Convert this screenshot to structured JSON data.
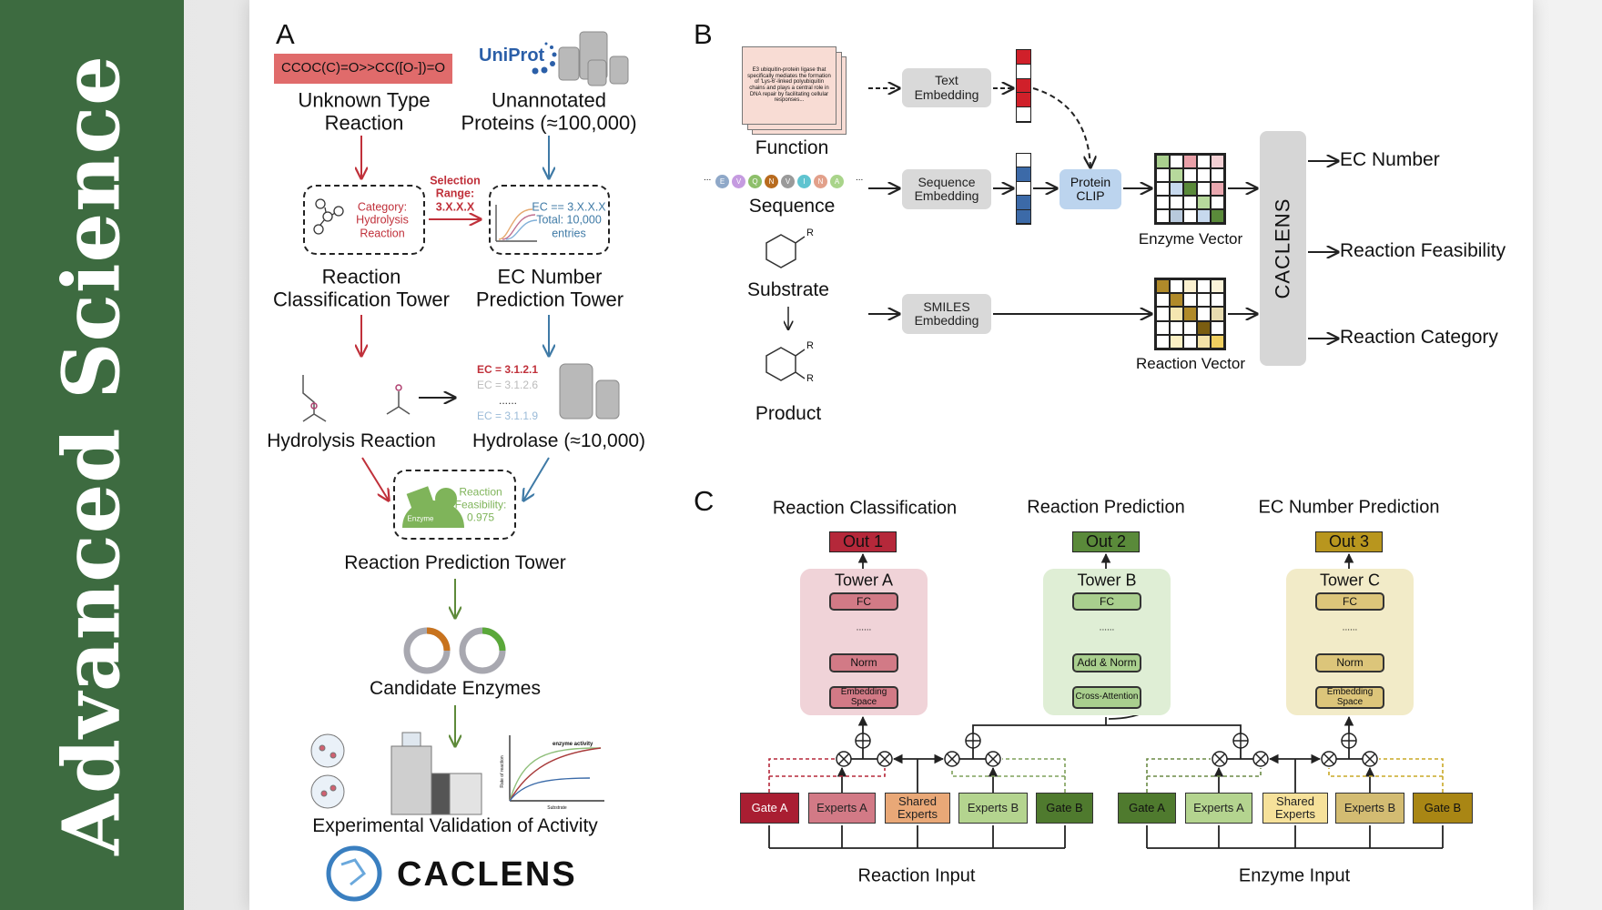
{
  "sidebar": {
    "title": "Advanced Science",
    "color": "#3d6b40"
  },
  "panel_a": {
    "label": "A",
    "smiles": "CCOC(C)=O>>CC([O-])=O",
    "uniprot_logo": "UniProt",
    "unknown_reaction": {
      "line1": "Unknown Type",
      "line2": "Reaction"
    },
    "unannotated": {
      "line1": "Unannotated",
      "line2": "Proteins (≈100,000)"
    },
    "category_box": {
      "line1": "Category:",
      "line2": "Hydrolysis",
      "line3": "Reaction"
    },
    "selection": {
      "line1": "Selection",
      "line2": "Range:",
      "line3": "3.X.X.X"
    },
    "ec_box": {
      "line1": "EC == 3.X.X.X",
      "line2": "Total: 10,000",
      "line3": "entries"
    },
    "reaction_tower": {
      "line1": "Reaction",
      "line2": "Classification Tower"
    },
    "ec_tower": {
      "line1": "EC Number",
      "line2": "Prediction Tower"
    },
    "ec_list": [
      "EC = 3.1.2.1",
      "EC = 3.1.2.6",
      "......",
      "EC = 3.1.1.9"
    ],
    "hydrolysis_reaction": "Hydrolysis Reaction",
    "hydrolase": "Hydrolase (≈10,000)",
    "feasibility_box": {
      "enzyme": "Enzyme",
      "line1": "Reaction",
      "line2": "Feasibility:",
      "line3": "0.975"
    },
    "prediction_tower": "Reaction Prediction Tower",
    "candidate_enzymes": "Candidate Enzymes",
    "graph": {
      "title": "enzyme activity",
      "ylabel": "Rate of reaction",
      "xlabel": "Substrate"
    },
    "validation": "Experimental Validation of Activity",
    "logo_text": "CACLENS",
    "colors": {
      "red": "#c0303a",
      "blue": "#3f7aa6",
      "green": "#5e8a3a",
      "smiles_bg": "#e06b6b",
      "feasibility": "#7fb45a"
    }
  },
  "panel_b": {
    "label": "B",
    "function_text": "E3 ubiquitin-protein ligase that specifically mediates the formation of 'Lys-6'-linked polyubiquitin chains and plays a central role in DNA repair by facilitating cellular responses...",
    "function": "Function",
    "sequence_beads": [
      {
        "letter": "E",
        "color": "#8fa8c8"
      },
      {
        "letter": "V",
        "color": "#c59be0"
      },
      {
        "letter": "Q",
        "color": "#8dbf6a"
      },
      {
        "letter": "N",
        "color": "#b86b1e"
      },
      {
        "letter": "V",
        "color": "#9a9a9a"
      },
      {
        "letter": "I",
        "color": "#5fc4d0"
      },
      {
        "letter": "N",
        "color": "#e2a08a"
      },
      {
        "letter": "A",
        "color": "#a9d48a"
      }
    ],
    "ellipsis": "...",
    "sequence": "Sequence",
    "substrate": "Substrate",
    "product": "Product",
    "r_group": "R",
    "text_embedding": {
      "line1": "Text",
      "line2": "Embedding"
    },
    "sequence_embedding": {
      "line1": "Sequence",
      "line2": "Embedding"
    },
    "smiles_embedding": {
      "line1": "SMILES",
      "line2": "Embedding"
    },
    "protein_clip": {
      "line1": "Protein",
      "line2": "CLIP"
    },
    "text_vector": [
      "#d0202a",
      "#ffffff",
      "#d0202a",
      "#d0202a",
      "#ffffff"
    ],
    "sequence_vector": [
      "#ffffff",
      "#3c6aa8",
      "#ffffff",
      "#3c6aa8",
      "#3c6aa8"
    ],
    "enzyme_grid": [
      "#a9cf8e",
      "#ffffff",
      "#e9a0a8",
      "#ffffff",
      "#f3d0d4",
      "#ffffff",
      "#b7d99c",
      "#ffffff",
      "#ffffff",
      "#ffffff",
      "#ffffff",
      "#c7d9ee",
      "#5a8a3a",
      "#ffffff",
      "#eaa8b0",
      "#ffffff",
      "#ffffff",
      "#ffffff",
      "#b7d99c",
      "#ffffff",
      "#ffffff",
      "#b8c9dc",
      "#ffffff",
      "#c7d9ee",
      "#5a8a3a"
    ],
    "reaction_grid": [
      "#b08a2a",
      "#ffffff",
      "#faf0cf",
      "#ffffff",
      "#fbf3d8",
      "#ffffff",
      "#b08a2a",
      "#ffffff",
      "#ffffff",
      "#ffffff",
      "#ffffff",
      "#f5e6b0",
      "#b08a2a",
      "#ffffff",
      "#e8dcb0",
      "#ffffff",
      "#ffffff",
      "#ffffff",
      "#7a5d10",
      "#ffffff",
      "#ffffff",
      "#fbf0c4",
      "#ffffff",
      "#f3e2a8",
      "#f0cf60"
    ],
    "enzyme_vector": "Enzyme Vector",
    "reaction_vector": "Reaction Vector",
    "caclens": "CACLENS",
    "outputs": [
      "EC Number",
      "Reaction Feasibility",
      "Reaction Category"
    ]
  },
  "panel_c": {
    "label": "C",
    "headings": [
      "Reaction Classification",
      "Reaction Prediction",
      "EC Number Prediction"
    ],
    "outs": [
      {
        "label": "Out 1",
        "color": "#b5283a"
      },
      {
        "label": "Out 2",
        "color": "#5a8a3a"
      },
      {
        "label": "Out 3",
        "color": "#b8961e"
      }
    ],
    "towers": [
      {
        "title": "Tower A",
        "bg": "#f0d3d8",
        "inner": "#d27a86",
        "blocks": [
          "FC",
          "......",
          "Norm",
          "Embedding Space"
        ]
      },
      {
        "title": "Tower B",
        "bg": "#dfeed5",
        "inner": "#a9cf8e",
        "blocks": [
          "FC",
          "......",
          "Add & Norm",
          "Cross-Attention"
        ]
      },
      {
        "title": "Tower C",
        "bg": "#f2ebc8",
        "inner": "#dcc57a",
        "blocks": [
          "FC",
          "......",
          "Norm",
          "Embedding Space"
        ]
      }
    ],
    "left_gates": [
      {
        "label": "Gate A",
        "color": "#a91e32"
      },
      {
        "label": "Experts A",
        "color": "#d27a86"
      },
      {
        "label": "Shared Experts",
        "color": "#e9a877"
      },
      {
        "label": "Experts B",
        "color": "#b4d48f"
      },
      {
        "label": "Gate B",
        "color": "#4f7a2e"
      }
    ],
    "right_gates": [
      {
        "label": "Gate A",
        "color": "#4f7a2e"
      },
      {
        "label": "Experts A",
        "color": "#b4d48f"
      },
      {
        "label": "Shared Experts",
        "color": "#f6e19a"
      },
      {
        "label": "Experts B",
        "color": "#d3bc72"
      },
      {
        "label": "Gate B",
        "color": "#a98614"
      }
    ],
    "reaction_input": "Reaction Input",
    "enzyme_input": "Enzyme Input"
  }
}
